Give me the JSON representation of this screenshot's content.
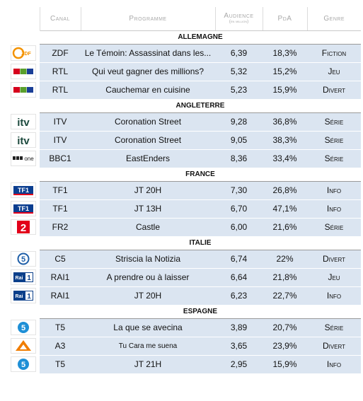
{
  "headers": {
    "canal": "Canal",
    "programme": "Programme",
    "audience": "Audience",
    "audience_sub": "(en million)",
    "poda": "PdA",
    "genre": "Genre"
  },
  "sections": [
    {
      "name": "ALLEMAGNE",
      "rows": [
        {
          "logo": "zdf-logo",
          "canal": "ZDF",
          "programme": "Le Témoin: Assassinat dans les...",
          "audience": "6,39",
          "poda": "18,3%",
          "genre": "Fiction"
        },
        {
          "logo": "rtl-logo",
          "canal": "RTL",
          "programme": "Qui veut gagner des millions?",
          "audience": "5,32",
          "poda": "15,2%",
          "genre": "Jeu"
        },
        {
          "logo": "rtl-logo",
          "canal": "RTL",
          "programme": "Cauchemar en cuisine",
          "audience": "5,23",
          "poda": "15,9%",
          "genre": "Divert"
        }
      ]
    },
    {
      "name": "ANGLETERRE",
      "rows": [
        {
          "logo": "itv-logo",
          "canal": "ITV",
          "programme": "Coronation Street",
          "audience": "9,28",
          "poda": "36,8%",
          "genre": "Série"
        },
        {
          "logo": "itv-logo",
          "canal": "ITV",
          "programme": "Coronation Street",
          "audience": "9,05",
          "poda": "38,3%",
          "genre": "Série"
        },
        {
          "logo": "bbc-one-logo",
          "canal": "BBC1",
          "programme": "EastEnders",
          "audience": "8,36",
          "poda": "33,4%",
          "genre": "Série"
        }
      ]
    },
    {
      "name": "FRANCE",
      "rows": [
        {
          "logo": "tf1-logo",
          "canal": "TF1",
          "programme": "JT 20H",
          "audience": "7,30",
          "poda": "26,8%",
          "genre": "Info"
        },
        {
          "logo": "tf1-logo",
          "canal": "TF1",
          "programme": "JT 13H",
          "audience": "6,70",
          "poda": "47,1%",
          "genre": "Info"
        },
        {
          "logo": "fr2-logo",
          "canal": "FR2",
          "programme": "Castle",
          "audience": "6,00",
          "poda": "21,6%",
          "genre": "Série"
        }
      ]
    },
    {
      "name": "ITALIE",
      "rows": [
        {
          "logo": "canale5-logo",
          "canal": "C5",
          "programme": "Striscia la Notizia",
          "audience": "6,74",
          "poda": "22%",
          "genre": "Divert"
        },
        {
          "logo": "rai1-logo",
          "canal": "RAI1",
          "programme": "A prendre ou à laisser",
          "audience": "6,64",
          "poda": "21,8%",
          "genre": "Jeu"
        },
        {
          "logo": "rai1-logo",
          "canal": "RAI1",
          "programme": "JT 20H",
          "audience": "6,23",
          "poda": "22,7%",
          "genre": "Info"
        }
      ]
    },
    {
      "name": "ESPAGNE",
      "rows": [
        {
          "logo": "telecinco-logo",
          "canal": "T5",
          "programme": "La que se avecina",
          "audience": "3,89",
          "poda": "20,7%",
          "genre": "Série"
        },
        {
          "logo": "antena3-logo",
          "canal": "A3",
          "programme": "Tu Cara me suena",
          "audience": "3,65",
          "poda": "23,9%",
          "genre": "Divert"
        },
        {
          "logo": "telecinco-logo",
          "canal": "T5",
          "programme": "JT 21H",
          "audience": "2,95",
          "poda": "15,9%",
          "genre": "Info"
        }
      ]
    }
  ],
  "logo_texts": {
    "zdf": "ZDF",
    "rtl": "RTL",
    "itv": "itv",
    "bbc": "BBC",
    "one": "one",
    "tf1": "TF1",
    "fr2": "2",
    "c5": "5",
    "rai": "Rai",
    "rai_num": "1",
    "t5": "5"
  },
  "colors": {
    "row_bg": "#dbe5f1",
    "zdf": "#f39200",
    "rtl_red": "#d6001c",
    "rtl_green": "#5aa02c",
    "rtl_blue": "#1a3e96",
    "itv": "#1d4a3e",
    "tf1": "#0a3d8f",
    "fr2": "#e2001a",
    "c5_blue": "#1f5fa8",
    "rai": "#0b3f8a",
    "t5": "#1e8fd6",
    "a3": "#f07d00"
  }
}
